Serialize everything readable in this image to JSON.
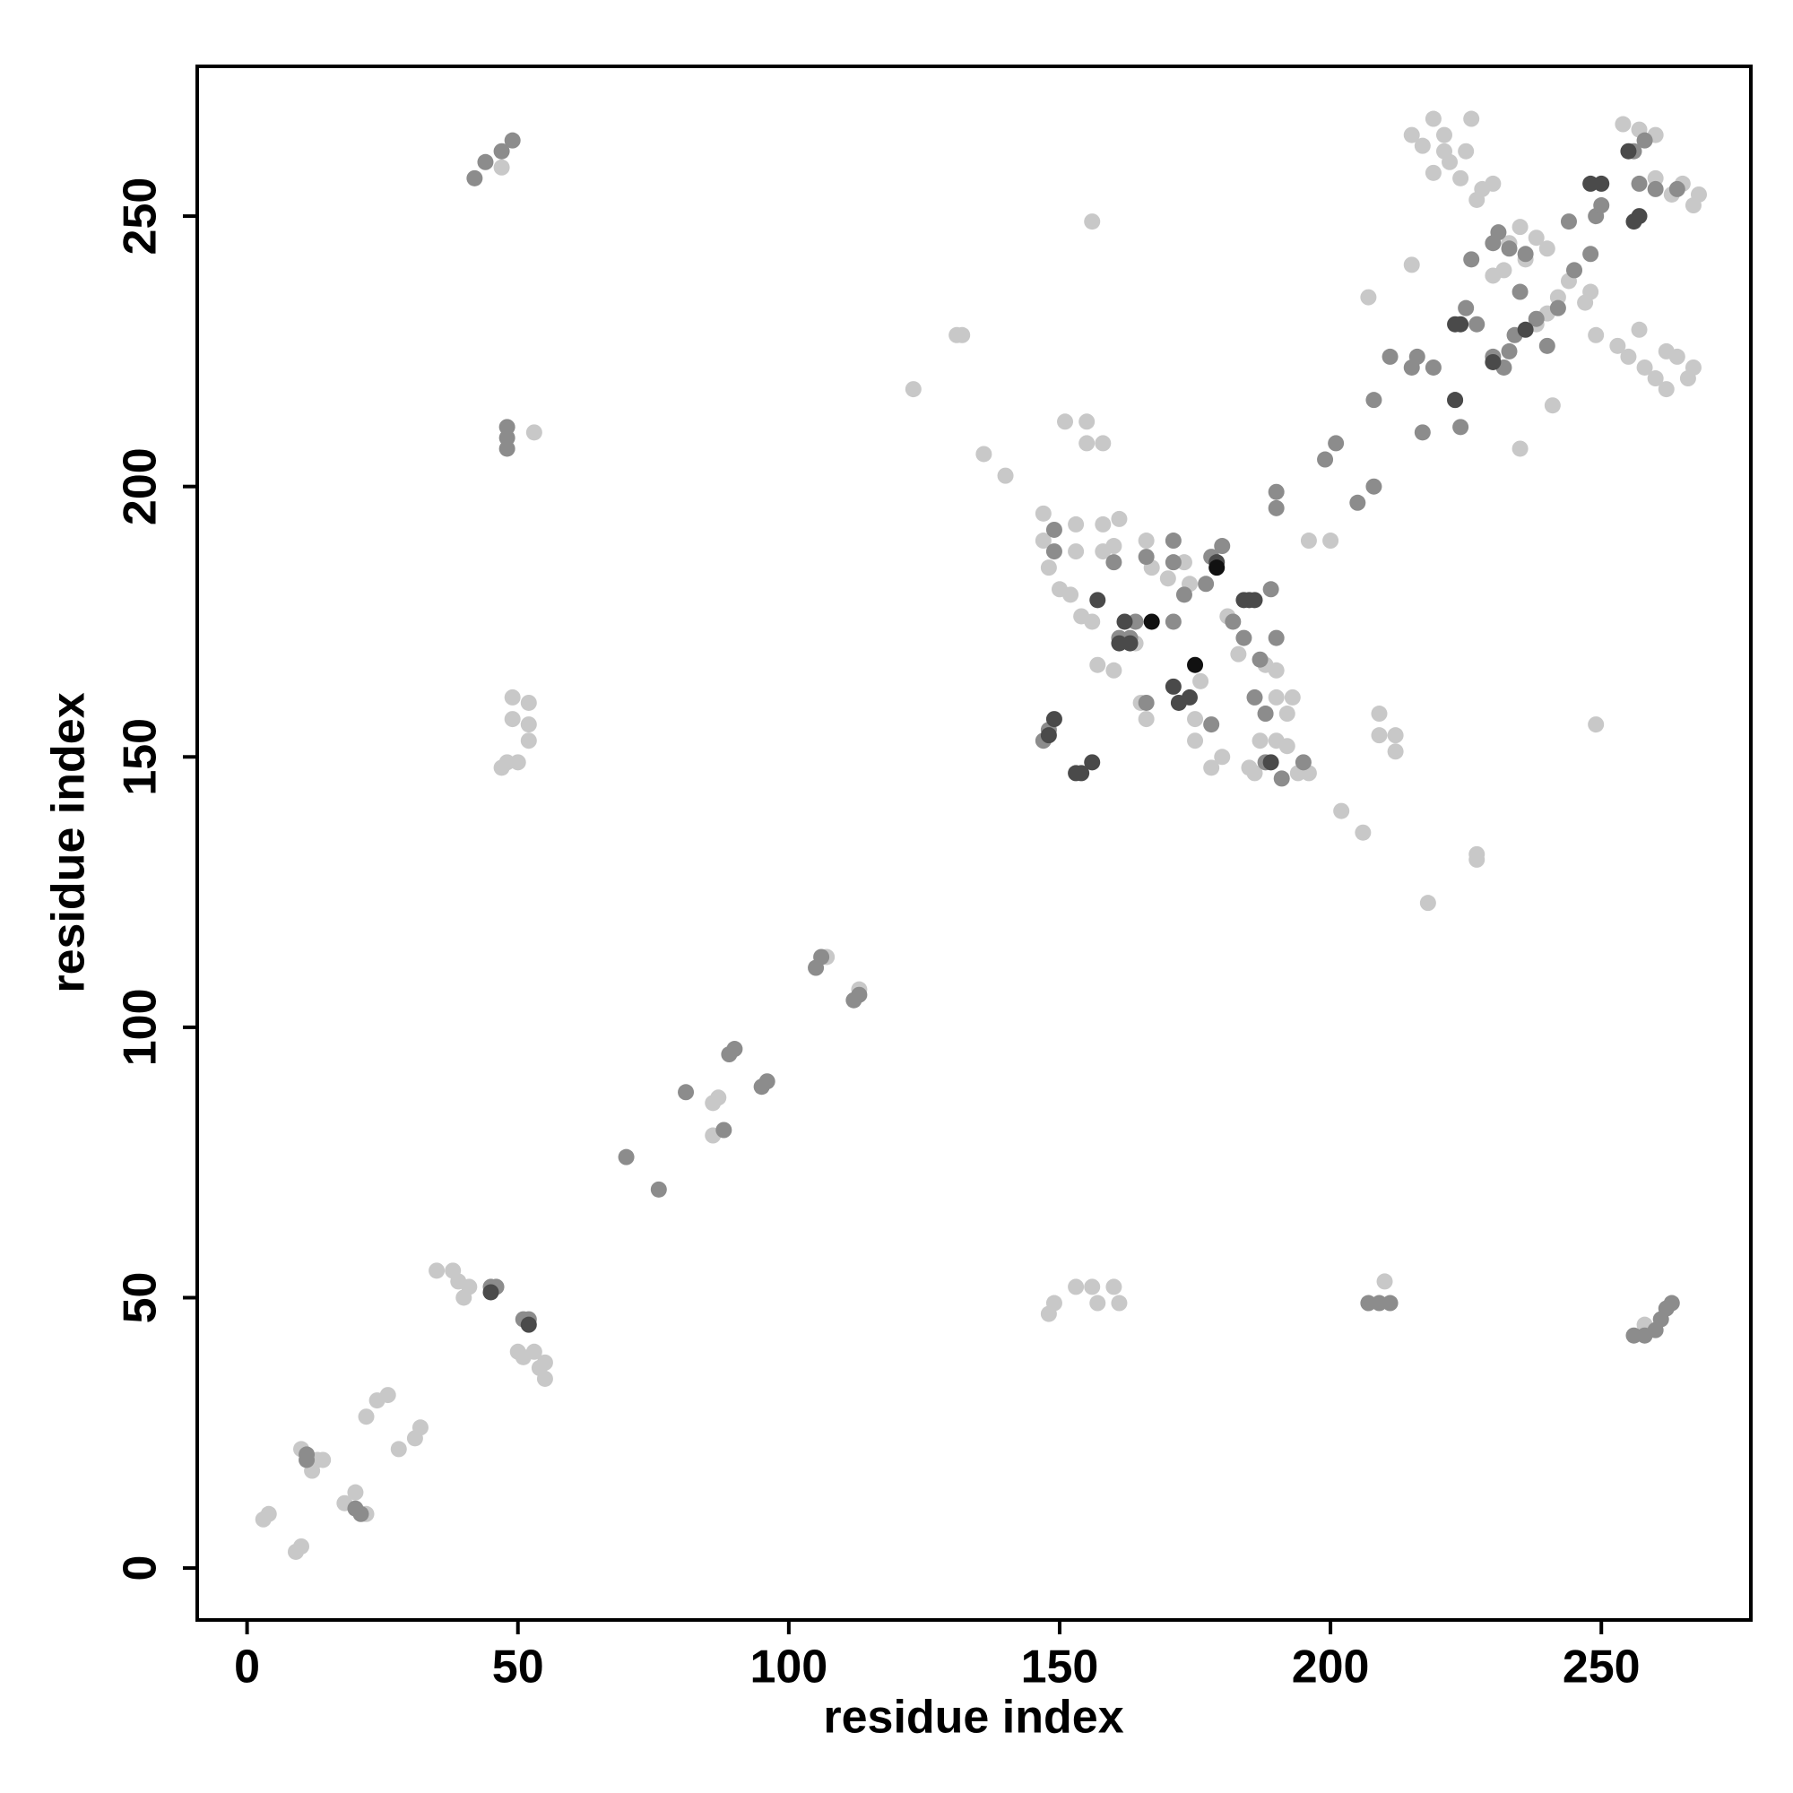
{
  "chart_data": {
    "type": "scatter",
    "xlabel": "residue index",
    "ylabel": "residue index",
    "xlim": [
      -9.2,
      277.6
    ],
    "ylim": [
      -9.6,
      277.7
    ],
    "xticks": [
      0,
      50,
      100,
      150,
      200,
      250
    ],
    "yticks": [
      0,
      50,
      100,
      150,
      200,
      250
    ],
    "series": [
      {
        "color": "#c8c8c8",
        "x": [
          3,
          4,
          9,
          10,
          10,
          12,
          13,
          14,
          18,
          20,
          22,
          22,
          24,
          26,
          28,
          31,
          32,
          35,
          38,
          39,
          40,
          41,
          50,
          51,
          53,
          54,
          55,
          55,
          48,
          47,
          50,
          49,
          49,
          52,
          52,
          52,
          53,
          47,
          86,
          87,
          86,
          107,
          113,
          123,
          131,
          132,
          136,
          140,
          148,
          149,
          153,
          156,
          157,
          160,
          161,
          151,
          155,
          155,
          158,
          156,
          196,
          200,
          202,
          206,
          207,
          209,
          209,
          210,
          212,
          212,
          215,
          218,
          227,
          227,
          235,
          241,
          249,
          258,
          147,
          147,
          148,
          150,
          152,
          153,
          153,
          154,
          156,
          158,
          158,
          160,
          161,
          157,
          160,
          164,
          166,
          167,
          165,
          166,
          170,
          173,
          174,
          175,
          175,
          176,
          178,
          180,
          181,
          183,
          185,
          186,
          187,
          188,
          188,
          190,
          190,
          192,
          193,
          192,
          194,
          190,
          196,
          215,
          217,
          219,
          221,
          222,
          224,
          225,
          226,
          228,
          230,
          219,
          221,
          227,
          249,
          253,
          255,
          257,
          258,
          260,
          262,
          264,
          266,
          267,
          262,
          254,
          257,
          260,
          260,
          263,
          265,
          267,
          268,
          233,
          235,
          238,
          240,
          232,
          236,
          240,
          242,
          244,
          245,
          247,
          248,
          238,
          230
        ],
        "values": [
          9,
          10,
          3,
          4,
          22,
          18,
          20,
          20,
          12,
          14,
          10,
          28,
          31,
          32,
          22,
          24,
          26,
          55,
          55,
          53,
          50,
          52,
          40,
          39,
          40,
          37,
          38,
          35,
          149,
          148,
          149,
          157,
          161,
          160,
          156,
          153,
          210,
          259,
          86,
          87,
          80,
          113,
          107,
          218,
          228,
          228,
          206,
          202,
          47,
          49,
          52,
          52,
          49,
          52,
          49,
          212,
          212,
          208,
          208,
          249,
          190,
          190,
          140,
          136,
          235,
          158,
          154,
          53,
          154,
          151,
          241,
          123,
          132,
          131,
          207,
          215,
          156,
          45,
          195,
          190,
          185,
          181,
          180,
          193,
          188,
          176,
          175,
          193,
          188,
          189,
          194,
          167,
          166,
          171,
          190,
          185,
          160,
          157,
          183,
          186,
          182,
          157,
          153,
          164,
          148,
          150,
          176,
          169,
          148,
          147,
          153,
          158,
          167,
          161,
          166,
          158,
          161,
          152,
          147,
          153,
          147,
          265,
          263,
          268,
          265,
          260,
          257,
          262,
          268,
          255,
          256,
          258,
          262,
          253,
          228,
          226,
          224,
          229,
          222,
          220,
          218,
          224,
          220,
          222,
          225,
          267,
          266,
          265,
          257,
          254,
          256,
          252,
          254,
          245,
          248,
          246,
          244,
          240,
          242,
          232,
          235,
          238,
          240,
          234,
          236,
          230,
          239
        ]
      },
      {
        "color": "#8c8c8c",
        "x": [
          11,
          11,
          20,
          21,
          45,
          46,
          51,
          52,
          42,
          44,
          47,
          49,
          48,
          48,
          48,
          70,
          76,
          81,
          88,
          89,
          95,
          90,
          96,
          105,
          106,
          112,
          113,
          148,
          149,
          149,
          147,
          160,
          161,
          163,
          164,
          166,
          166,
          171,
          171,
          171,
          173,
          177,
          178,
          180,
          178,
          182,
          184,
          186,
          187,
          188,
          188,
          189,
          190,
          191,
          195,
          190,
          190,
          199,
          201,
          205,
          208,
          207,
          209,
          211,
          208,
          211,
          215,
          216,
          217,
          219,
          223,
          224,
          225,
          226,
          227,
          230,
          232,
          233,
          234,
          235,
          230,
          231,
          233,
          236,
          238,
          240,
          242,
          244,
          245,
          248,
          249,
          250,
          256,
          258,
          257,
          256,
          258,
          260,
          261,
          262,
          263,
          264,
          260
        ],
        "values": [
          21,
          20,
          11,
          10,
          52,
          52,
          46,
          46,
          257,
          260,
          262,
          264,
          207,
          209,
          211,
          76,
          70,
          88,
          81,
          95,
          89,
          96,
          90,
          111,
          113,
          105,
          106,
          155,
          192,
          188,
          153,
          186,
          172,
          172,
          175,
          160,
          187,
          190,
          186,
          175,
          180,
          182,
          187,
          189,
          156,
          175,
          172,
          161,
          168,
          158,
          149,
          181,
          172,
          146,
          149,
          199,
          196,
          205,
          208,
          197,
          200,
          49,
          49,
          49,
          216,
          224,
          222,
          224,
          210,
          222,
          216,
          211,
          233,
          242,
          230,
          224,
          222,
          225,
          228,
          236,
          245,
          247,
          244,
          243,
          231,
          226,
          233,
          249,
          240,
          243,
          250,
          252,
          262,
          264,
          256,
          43,
          43,
          44,
          46,
          48,
          49,
          255,
          255
        ]
      },
      {
        "color": "#4a4a4a",
        "x": [
          52,
          45,
          148,
          149,
          153,
          154,
          156,
          157,
          161,
          162,
          163,
          171,
          172,
          174,
          179,
          184,
          185,
          186,
          189,
          223,
          223,
          230,
          224,
          236,
          248,
          250,
          256,
          257,
          255
        ],
        "values": [
          45,
          51,
          154,
          157,
          147,
          147,
          149,
          179,
          171,
          175,
          171,
          163,
          160,
          161,
          186,
          179,
          179,
          179,
          149,
          216,
          230,
          223,
          230,
          229,
          256,
          256,
          249,
          250,
          262
        ]
      },
      {
        "color": "#111111",
        "x": [
          167,
          175,
          179
        ],
        "values": [
          175,
          167,
          185
        ]
      }
    ]
  }
}
